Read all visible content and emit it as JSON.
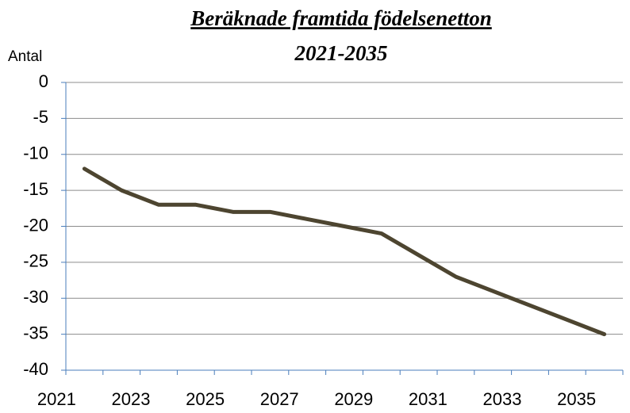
{
  "chart_data": {
    "type": "line",
    "title": "Beräknade framtida födelsenetton",
    "subtitle": "2021-2035",
    "y_label": "Antal",
    "categories": [
      "2021",
      null,
      "2023",
      null,
      "2025",
      null,
      "2027",
      null,
      "2029",
      null,
      "2031",
      null,
      "2033",
      null,
      "2035"
    ],
    "values": [
      -12,
      -15,
      -17,
      -17,
      -18,
      -18,
      -19,
      -20,
      -21,
      -24,
      -27,
      -29,
      -31,
      -33,
      -35
    ],
    "color": "#4d4530",
    "ylim": [
      -40,
      0
    ],
    "yticks": [
      0,
      -5,
      -10,
      -15,
      -20,
      -25,
      -30,
      -35,
      -40
    ],
    "grid": true
  }
}
